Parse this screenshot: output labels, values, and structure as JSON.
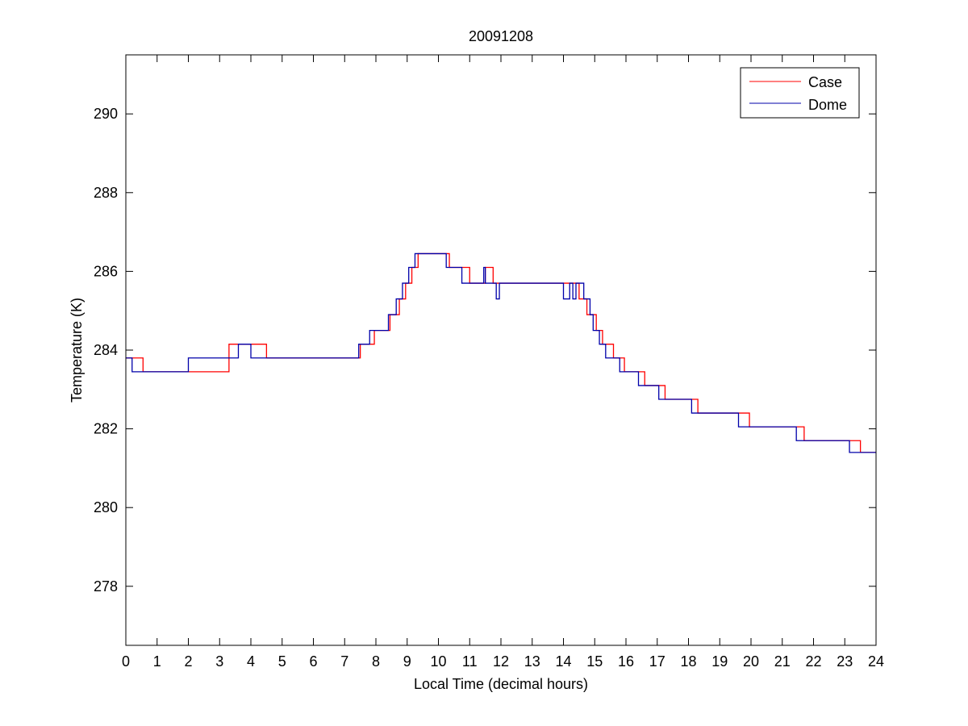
{
  "figure": {
    "background": "#ffffff"
  },
  "chart_data": {
    "type": "line",
    "title": "20091208",
    "xlabel": "Local Time (decimal hours)",
    "ylabel": "Temperature (K)",
    "xlim": [
      0,
      24
    ],
    "ylim": [
      276.5,
      291.5
    ],
    "xticks": [
      0,
      1,
      2,
      3,
      4,
      5,
      6,
      7,
      8,
      9,
      10,
      11,
      12,
      13,
      14,
      15,
      16,
      17,
      18,
      19,
      20,
      21,
      22,
      23,
      24
    ],
    "yticks": [
      278,
      280,
      282,
      284,
      286,
      288,
      290
    ],
    "grid": false,
    "legend_position": "top-right",
    "series": [
      {
        "name": "Case",
        "color": "#ff0000",
        "points": [
          [
            0,
            283.8
          ],
          [
            0.55,
            283.8
          ],
          [
            0.55,
            283.45
          ],
          [
            3.3,
            283.45
          ],
          [
            3.3,
            283.8
          ],
          [
            3.3,
            284.15
          ],
          [
            4.5,
            284.15
          ],
          [
            4.5,
            283.8
          ],
          [
            7.5,
            283.8
          ],
          [
            7.5,
            284.15
          ],
          [
            7.95,
            284.15
          ],
          [
            7.95,
            284.5
          ],
          [
            8.45,
            284.5
          ],
          [
            8.45,
            284.9
          ],
          [
            8.75,
            284.9
          ],
          [
            8.75,
            285.3
          ],
          [
            8.95,
            285.3
          ],
          [
            8.95,
            285.7
          ],
          [
            9.15,
            285.7
          ],
          [
            9.15,
            286.1
          ],
          [
            9.35,
            286.1
          ],
          [
            9.35,
            286.45
          ],
          [
            10.35,
            286.45
          ],
          [
            10.35,
            286.1
          ],
          [
            11.0,
            286.1
          ],
          [
            11.0,
            285.7
          ],
          [
            11.5,
            285.7
          ],
          [
            11.5,
            286.1
          ],
          [
            11.75,
            286.1
          ],
          [
            11.75,
            285.7
          ],
          [
            14.5,
            285.7
          ],
          [
            14.5,
            285.3
          ],
          [
            14.75,
            285.3
          ],
          [
            14.75,
            284.9
          ],
          [
            15.05,
            284.9
          ],
          [
            15.05,
            284.5
          ],
          [
            15.25,
            284.5
          ],
          [
            15.25,
            284.15
          ],
          [
            15.6,
            284.15
          ],
          [
            15.6,
            283.8
          ],
          [
            15.95,
            283.8
          ],
          [
            15.95,
            283.45
          ],
          [
            16.6,
            283.45
          ],
          [
            16.6,
            283.1
          ],
          [
            17.25,
            283.1
          ],
          [
            17.25,
            282.75
          ],
          [
            18.3,
            282.75
          ],
          [
            18.3,
            282.4
          ],
          [
            19.95,
            282.4
          ],
          [
            19.95,
            282.05
          ],
          [
            21.7,
            282.05
          ],
          [
            21.7,
            281.7
          ],
          [
            23.5,
            281.7
          ],
          [
            23.5,
            281.4
          ],
          [
            24,
            281.4
          ]
        ]
      },
      {
        "name": "Dome",
        "color": "#0000aa",
        "points": [
          [
            0,
            283.8
          ],
          [
            0.2,
            283.8
          ],
          [
            0.2,
            283.45
          ],
          [
            2.0,
            283.45
          ],
          [
            2.0,
            283.8
          ],
          [
            3.6,
            283.8
          ],
          [
            3.6,
            284.15
          ],
          [
            4.0,
            284.15
          ],
          [
            4.0,
            283.8
          ],
          [
            7.45,
            283.8
          ],
          [
            7.45,
            284.15
          ],
          [
            7.8,
            284.15
          ],
          [
            7.8,
            284.5
          ],
          [
            8.4,
            284.5
          ],
          [
            8.4,
            284.9
          ],
          [
            8.65,
            284.9
          ],
          [
            8.65,
            285.3
          ],
          [
            8.85,
            285.3
          ],
          [
            8.85,
            285.7
          ],
          [
            9.05,
            285.7
          ],
          [
            9.05,
            286.1
          ],
          [
            9.25,
            286.1
          ],
          [
            9.25,
            286.45
          ],
          [
            10.25,
            286.45
          ],
          [
            10.25,
            286.1
          ],
          [
            10.75,
            286.1
          ],
          [
            10.75,
            285.7
          ],
          [
            11.45,
            285.7
          ],
          [
            11.45,
            286.1
          ],
          [
            11.5,
            286.1
          ],
          [
            11.5,
            285.7
          ],
          [
            11.85,
            285.7
          ],
          [
            11.85,
            285.3
          ],
          [
            11.95,
            285.3
          ],
          [
            11.95,
            285.7
          ],
          [
            14.0,
            285.7
          ],
          [
            14.0,
            285.3
          ],
          [
            14.2,
            285.3
          ],
          [
            14.2,
            285.7
          ],
          [
            14.3,
            285.7
          ],
          [
            14.3,
            285.3
          ],
          [
            14.4,
            285.3
          ],
          [
            14.4,
            285.7
          ],
          [
            14.65,
            285.7
          ],
          [
            14.65,
            285.3
          ],
          [
            14.85,
            285.3
          ],
          [
            14.85,
            284.9
          ],
          [
            14.95,
            284.9
          ],
          [
            14.95,
            284.5
          ],
          [
            15.15,
            284.5
          ],
          [
            15.15,
            284.15
          ],
          [
            15.35,
            284.15
          ],
          [
            15.35,
            283.8
          ],
          [
            15.8,
            283.8
          ],
          [
            15.8,
            283.45
          ],
          [
            16.4,
            283.45
          ],
          [
            16.4,
            283.1
          ],
          [
            17.05,
            283.1
          ],
          [
            17.05,
            282.75
          ],
          [
            18.1,
            282.75
          ],
          [
            18.1,
            282.4
          ],
          [
            19.6,
            282.4
          ],
          [
            19.6,
            282.05
          ],
          [
            21.45,
            282.05
          ],
          [
            21.45,
            281.7
          ],
          [
            23.15,
            281.7
          ],
          [
            23.15,
            281.4
          ],
          [
            24,
            281.4
          ]
        ]
      }
    ]
  }
}
